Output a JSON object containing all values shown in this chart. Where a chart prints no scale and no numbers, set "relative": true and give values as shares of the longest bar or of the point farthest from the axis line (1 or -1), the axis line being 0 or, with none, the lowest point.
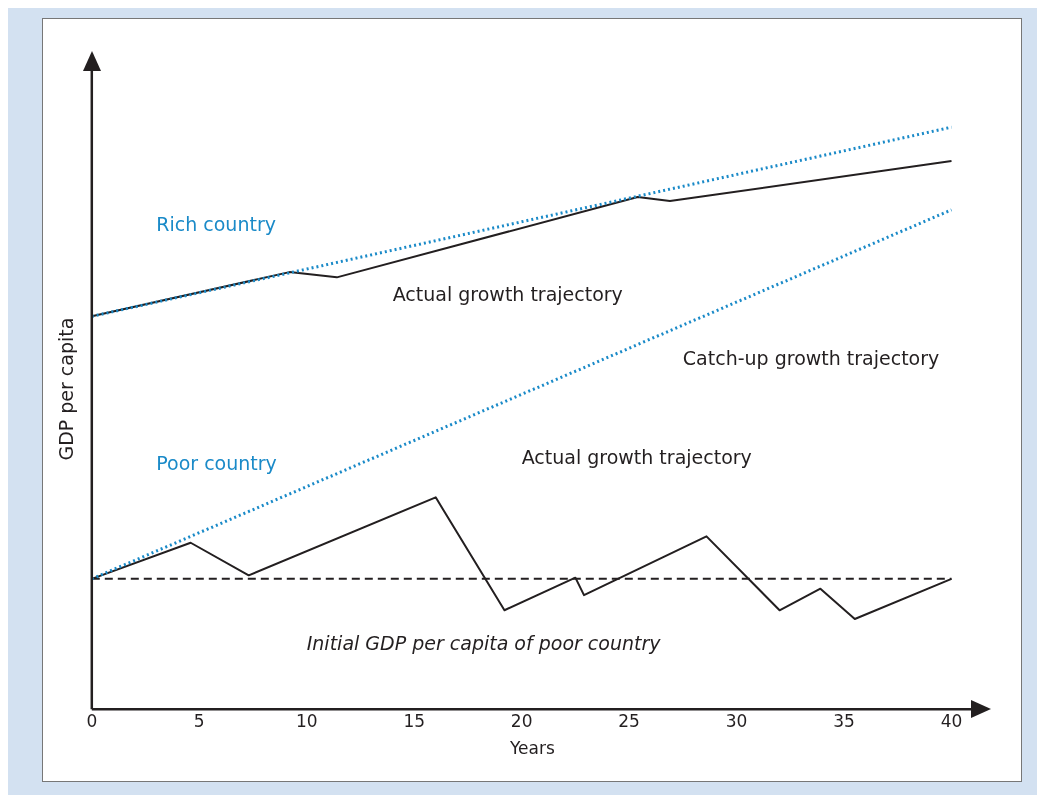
{
  "chart_data": {
    "type": "line",
    "relative": true,
    "xlabel": "Years",
    "ylabel": "GDP per capita",
    "xlim": [
      0,
      41
    ],
    "xticks": [
      0,
      5,
      10,
      15,
      20,
      25,
      30,
      35,
      40
    ],
    "grid": false,
    "legend": false,
    "marker": "none",
    "series": [
      {
        "color": "#1a8ac8",
        "line_style": "dotted",
        "x": [
          0,
          40
        ],
        "values": [
          0.675,
          1
        ]
      },
      {
        "color": "#231f20",
        "line_style": "solid",
        "x": [
          0,
          9.2,
          11.4,
          25.4,
          26.9,
          40
        ],
        "values": [
          0.675,
          0.751,
          0.742,
          0.88,
          0.873,
          0.942
        ]
      },
      {
        "color": "#1a8ac8",
        "line_style": "dotted",
        "x": [
          0,
          40
        ],
        "values": [
          0.224,
          0.858
        ]
      },
      {
        "color": "#231f20",
        "line_style": "solid",
        "x": [
          0,
          4.6,
          7.3,
          16,
          19.2,
          22.5,
          22.9,
          28.6,
          32,
          33.9,
          35.5,
          40
        ],
        "values": [
          0.224,
          0.286,
          0.23,
          0.364,
          0.17,
          0.226,
          0.196,
          0.297,
          0.17,
          0.207,
          0.155,
          0.224
        ]
      },
      {
        "color": "#231f20",
        "line_style": "dashed",
        "x": [
          0,
          40
        ],
        "values": [
          0.224,
          0.224
        ]
      }
    ],
    "annotations": [
      "Rich country",
      "Poor country",
      "Actual growth trajectory",
      "Catch-up growth trajectory",
      "Actual growth trajectory",
      "Initial GDP per capita of poor country"
    ]
  }
}
